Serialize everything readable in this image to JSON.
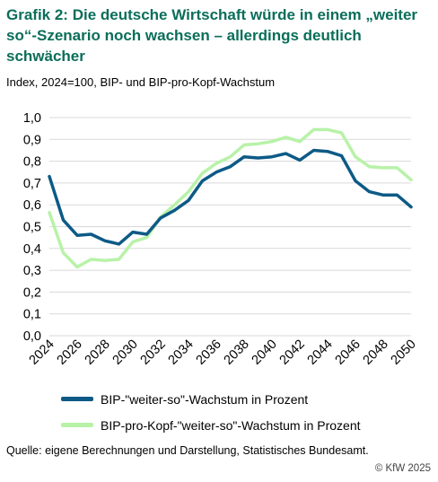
{
  "header": {
    "title": "Grafik 2: Die deutsche Wirtschaft würde in einem „weiter so“-Szenario noch wachsen – allerdings deutlich schwächer",
    "subtitle": "Index, 2024=100, BIP- und BIP-pro-Kopf-Wachstum"
  },
  "footer": {
    "source": "Quelle: eigene Berechnungen und Darstellung, Statistisches Bundesamt.",
    "copyright": "© KfW 2025"
  },
  "colors": {
    "title": "#0a6e5a",
    "series1": "#0d5a86",
    "series2": "#b8f2a8",
    "grid": "#d9d9d9"
  },
  "chart_data": {
    "type": "line",
    "title": "",
    "xlabel": "",
    "ylabel": "",
    "ylim": [
      0,
      1.0
    ],
    "yticks": [
      "0,0",
      "0,1",
      "0,2",
      "0,3",
      "0,4",
      "0,5",
      "0,6",
      "0,7",
      "0,8",
      "0,9",
      "1,0"
    ],
    "xticks": [
      "2024",
      "2026",
      "2028",
      "2030",
      "2032",
      "2034",
      "2036",
      "2038",
      "2040",
      "2042",
      "2044",
      "2046",
      "2048",
      "2050"
    ],
    "x": [
      2024,
      2025,
      2026,
      2027,
      2028,
      2029,
      2030,
      2031,
      2032,
      2033,
      2034,
      2035,
      2036,
      2037,
      2038,
      2039,
      2040,
      2041,
      2042,
      2043,
      2044,
      2045,
      2046,
      2047,
      2048,
      2049,
      2050
    ],
    "grid": "horizontal",
    "legend": "bottom",
    "series": [
      {
        "name": "BIP-\"weiter-so\"-Wachstum in Prozent",
        "values": [
          0.73,
          0.53,
          0.46,
          0.465,
          0.435,
          0.42,
          0.475,
          0.465,
          0.54,
          0.575,
          0.62,
          0.71,
          0.75,
          0.775,
          0.82,
          0.815,
          0.82,
          0.835,
          0.805,
          0.85,
          0.845,
          0.825,
          0.71,
          0.66,
          0.645,
          0.645,
          0.59
        ]
      },
      {
        "name": "BIP-pro-Kopf-\"weiter-so\"-Wachstum in Prozent",
        "values": [
          0.565,
          0.38,
          0.315,
          0.35,
          0.345,
          0.35,
          0.43,
          0.45,
          0.545,
          0.6,
          0.66,
          0.745,
          0.79,
          0.82,
          0.875,
          0.88,
          0.89,
          0.91,
          0.89,
          0.945,
          0.945,
          0.93,
          0.82,
          0.775,
          0.77,
          0.77,
          0.715
        ]
      }
    ]
  }
}
